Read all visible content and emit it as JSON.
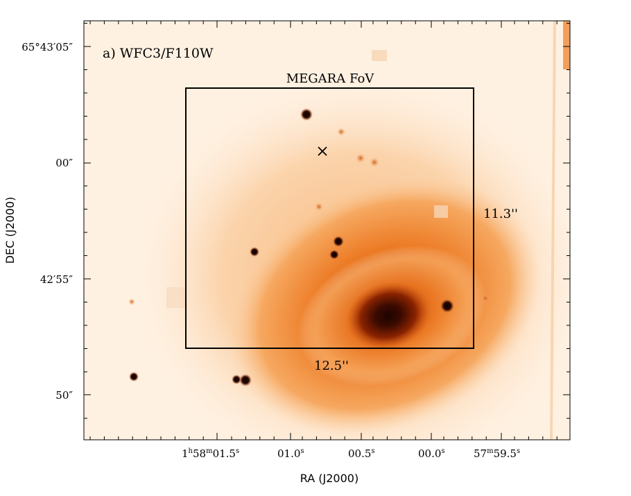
{
  "panel_label": "a) WFC3/F110W",
  "fov_label": "MEGARA FoV",
  "fov_width_label": "12.5''",
  "fov_height_label": "11.3''",
  "ra_axis_label": "RA (J2000)",
  "dec_axis_label": "DEC (J2000)",
  "ra_ticks": [
    {
      "h": "1",
      "m": "58",
      "s": "01.5"
    },
    {
      "h": "",
      "m": "",
      "s": "01.0"
    },
    {
      "h": "",
      "m": "",
      "s": "00.5"
    },
    {
      "h": "",
      "m": "",
      "s": "00.0"
    },
    {
      "h": "",
      "m": "57",
      "s": "59.5"
    }
  ],
  "dec_ticks": [
    "65°43′05″",
    "00″",
    "42′55″",
    "50″"
  ],
  "colors": {
    "background": "#fff1e2",
    "bulge": "#2a0a00",
    "disk": "#e86a14",
    "star": "#1a0500",
    "frame": "#000000"
  },
  "marker": "cross"
}
